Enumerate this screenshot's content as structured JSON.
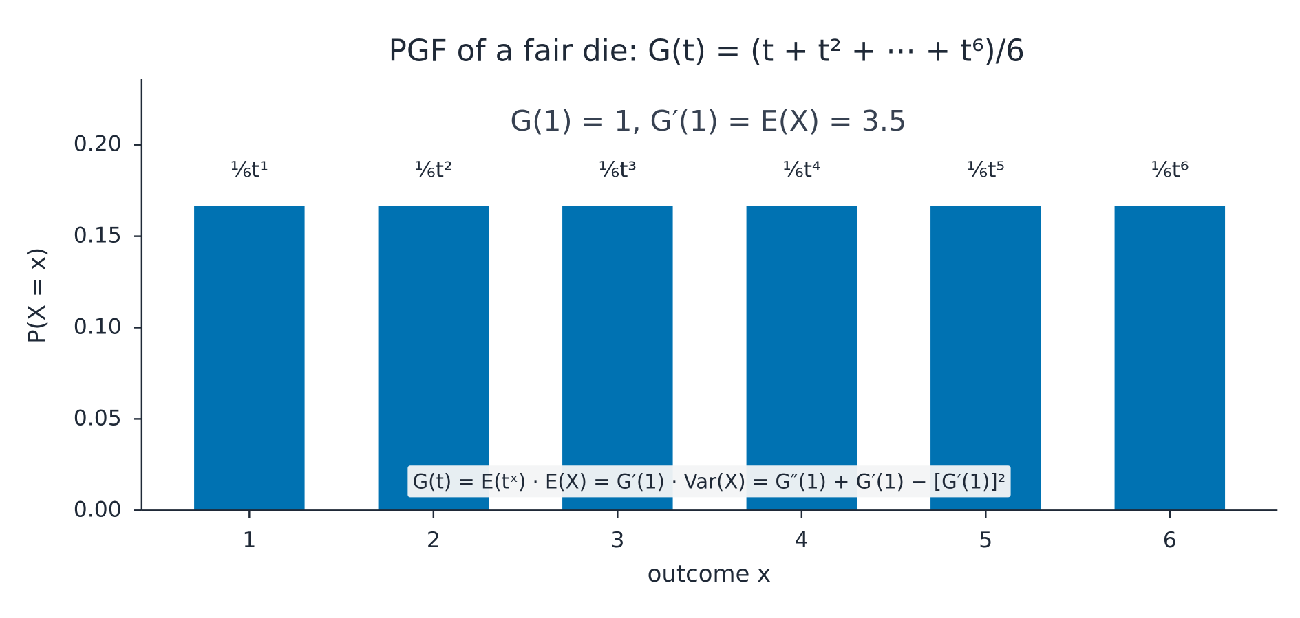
{
  "chart_data": {
    "type": "bar",
    "title": "PGF of a fair die:  G(t) = (t + t² + ⋯ + t⁶)/6",
    "subtitle": "G(1) = 1,    G′(1) = E(X) = 3.5",
    "x_label": "outcome x",
    "y_label": "P(X = x)",
    "x": [
      1,
      2,
      3,
      4,
      5,
      6
    ],
    "values": [
      0.1667,
      0.1667,
      0.1667,
      0.1667,
      0.1667,
      0.1667
    ],
    "bar_annotations": [
      "⅙t¹",
      "⅙t²",
      "⅙t³",
      "⅙t⁴",
      "⅙t⁵",
      "⅙t⁶"
    ],
    "color": "#0072b2",
    "bar_width": 0.6,
    "xlim": [
      0.415,
      6.585
    ],
    "xticks": [
      1,
      2,
      3,
      4,
      5,
      6
    ],
    "ylim": [
      0,
      0.236
    ],
    "yticks": [
      {
        "value": 0,
        "label": "0.00"
      },
      {
        "value": 0.05,
        "label": "0.05"
      },
      {
        "value": 0.1,
        "label": "0.10"
      },
      {
        "value": 0.15,
        "label": "0.15"
      },
      {
        "value": 0.2,
        "label": "0.20"
      }
    ],
    "note": "G(t) = E(tˣ)  ·  E(X) = G′(1)  ·  Var(X) = G″(1) + G′(1) − [G′(1)]²",
    "grid": false
  }
}
